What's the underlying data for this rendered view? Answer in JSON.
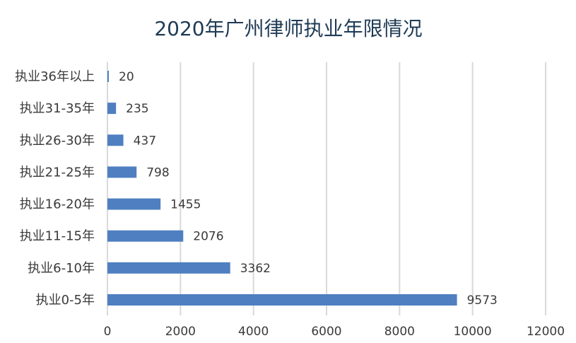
{
  "chart_data": {
    "type": "bar",
    "orientation": "horizontal",
    "title": "2020年广州律师执业年限情况",
    "categories": [
      "执业36年以上",
      "执业31-35年",
      "执业26-30年",
      "执业21-25年",
      "执业16-20年",
      "执业11-15年",
      "执业6-10年",
      "执业0-5年"
    ],
    "values": [
      20,
      235,
      437,
      798,
      1455,
      2076,
      3362,
      9573
    ],
    "xlim": [
      0,
      12000
    ],
    "xticks": [
      0,
      2000,
      4000,
      6000,
      8000,
      10000,
      12000
    ],
    "xlabel": "",
    "ylabel": "",
    "grid": true,
    "data_labels": true,
    "bar_color": "#4f7fc1"
  }
}
